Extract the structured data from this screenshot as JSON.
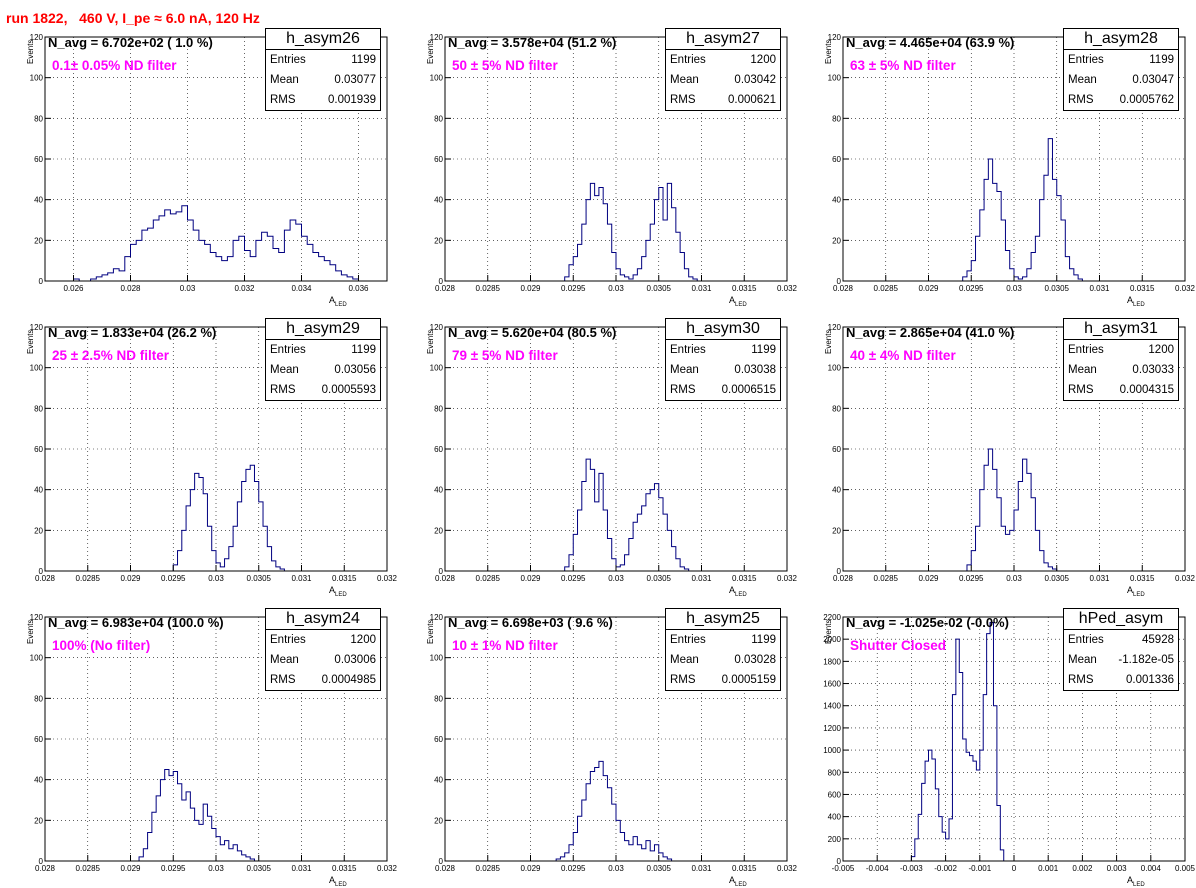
{
  "title": "run 1822,   460 V, I_pe ≈ 6.0 nA, 120 Hz",
  "x_axis_label": "A",
  "x_axis_subscript": "LED",
  "y_axis_label": "Events",
  "stat_labels": {
    "entries": "Entries",
    "mean": "Mean",
    "rms": "RMS"
  },
  "colors": {
    "title": "#ff0000",
    "annotation": "#ff00ff",
    "histogram": "#000080",
    "grid": "#000000"
  },
  "chart_data": [
    {
      "type": "bar",
      "name": "h_asym26",
      "navg_text": "N_avg = 6.702e+02 ( 1.0 %)",
      "filter_text": "0.1± 0.05% ND filter",
      "stats": {
        "entries": "1199",
        "mean": "0.03077",
        "rms": "0.001939"
      },
      "xlim": [
        0.025,
        0.037
      ],
      "xticks": [
        0.026,
        0.028,
        0.03,
        0.032,
        0.034,
        0.036
      ],
      "xtick_labels": [
        "0.026",
        "0.028",
        "0.03",
        "0.032",
        "0.034",
        "0.036"
      ],
      "ylim": [
        0,
        120
      ],
      "yticks": [
        0,
        20,
        40,
        60,
        80,
        100,
        120
      ],
      "ytick_labels": [
        "0",
        "20",
        "40",
        "60",
        "80",
        "100",
        "120"
      ],
      "bins": {
        "start": 0.026,
        "width": 0.0002,
        "counts": [
          1,
          0,
          0,
          1,
          2,
          3,
          4,
          6,
          5,
          12,
          18,
          20,
          25,
          26,
          30,
          32,
          35,
          33,
          34,
          37,
          30,
          25,
          20,
          18,
          14,
          12,
          10,
          12,
          20,
          22,
          15,
          12,
          20,
          24,
          22,
          16,
          14,
          25,
          30,
          28,
          22,
          18,
          14,
          12,
          10,
          8,
          5,
          3,
          2,
          1
        ]
      }
    },
    {
      "type": "bar",
      "name": "h_asym27",
      "navg_text": "N_avg = 3.578e+04 (51.2 %)",
      "filter_text": "50 ± 5% ND filter",
      "stats": {
        "entries": "1200",
        "mean": "0.03042",
        "rms": "0.000621"
      },
      "xlim": [
        0.028,
        0.032
      ],
      "xticks": [
        0.028,
        0.0285,
        0.029,
        0.0295,
        0.03,
        0.0305,
        0.031,
        0.0315,
        0.032
      ],
      "xtick_labels": [
        "0.028",
        "0.0285",
        "0.029",
        "0.0295",
        "0.03",
        "0.0305",
        "0.031",
        "0.0315",
        "0.032"
      ],
      "ylim": [
        0,
        120
      ],
      "yticks": [
        0,
        20,
        40,
        60,
        80,
        100,
        120
      ],
      "ytick_labels": [
        "0",
        "20",
        "40",
        "60",
        "80",
        "100",
        "120"
      ],
      "bins": {
        "start": 0.0294,
        "width": 5e-05,
        "counts": [
          2,
          8,
          12,
          18,
          28,
          40,
          48,
          42,
          46,
          38,
          28,
          14,
          6,
          3,
          2,
          1,
          3,
          6,
          12,
          20,
          28,
          40,
          46,
          30,
          48,
          36,
          24,
          14,
          6,
          2,
          1
        ]
      }
    },
    {
      "type": "bar",
      "name": "h_asym28",
      "navg_text": "N_avg = 4.465e+04 (63.9 %)",
      "filter_text": "63 ± 5% ND filter",
      "stats": {
        "entries": "1199",
        "mean": "0.03047",
        "rms": "0.0005762"
      },
      "xlim": [
        0.028,
        0.032
      ],
      "xticks": [
        0.028,
        0.0285,
        0.029,
        0.0295,
        0.03,
        0.0305,
        0.031,
        0.0315,
        0.032
      ],
      "xtick_labels": [
        "0.028",
        "0.0285",
        "0.029",
        "0.0295",
        "0.03",
        "0.0305",
        "0.031",
        "0.0315",
        "0.032"
      ],
      "ylim": [
        0,
        120
      ],
      "yticks": [
        0,
        20,
        40,
        60,
        80,
        100,
        120
      ],
      "ytick_labels": [
        "0",
        "20",
        "40",
        "60",
        "80",
        "100",
        "120"
      ],
      "bins": {
        "start": 0.0294,
        "width": 5e-05,
        "counts": [
          2,
          5,
          10,
          22,
          35,
          50,
          60,
          48,
          44,
          30,
          15,
          6,
          2,
          1,
          2,
          6,
          14,
          22,
          40,
          52,
          70,
          50,
          42,
          30,
          12,
          6,
          3,
          1
        ]
      }
    },
    {
      "type": "bar",
      "name": "h_asym29",
      "navg_text": "N_avg = 1.833e+04 (26.2 %)",
      "filter_text": "25 ± 2.5% ND filter",
      "stats": {
        "entries": "1199",
        "mean": "0.03056",
        "rms": "0.0005593"
      },
      "xlim": [
        0.028,
        0.032
      ],
      "xticks": [
        0.028,
        0.0285,
        0.029,
        0.0295,
        0.03,
        0.0305,
        0.031,
        0.0315,
        0.032
      ],
      "xtick_labels": [
        "0.028",
        "0.0285",
        "0.029",
        "0.0295",
        "0.03",
        "0.0305",
        "0.031",
        "0.0315",
        "0.032"
      ],
      "ylim": [
        0,
        120
      ],
      "yticks": [
        0,
        20,
        40,
        60,
        80,
        100,
        120
      ],
      "ytick_labels": [
        "0",
        "20",
        "40",
        "60",
        "80",
        "100",
        "120"
      ],
      "bins": {
        "start": 0.0295,
        "width": 5e-05,
        "counts": [
          3,
          10,
          20,
          32,
          40,
          48,
          46,
          38,
          22,
          10,
          4,
          2,
          6,
          12,
          22,
          34,
          44,
          50,
          52,
          44,
          34,
          22,
          12,
          5,
          2,
          1
        ]
      }
    },
    {
      "type": "bar",
      "name": "h_asym30",
      "navg_text": "N_avg = 5.620e+04 (80.5 %)",
      "filter_text": "79 ± 5% ND filter",
      "stats": {
        "entries": "1199",
        "mean": "0.03038",
        "rms": "0.0006515"
      },
      "xlim": [
        0.028,
        0.032
      ],
      "xticks": [
        0.028,
        0.0285,
        0.029,
        0.0295,
        0.03,
        0.0305,
        0.031,
        0.0315,
        0.032
      ],
      "xtick_labels": [
        "0.028",
        "0.0285",
        "0.029",
        "0.0295",
        "0.03",
        "0.0305",
        "0.031",
        "0.0315",
        "0.032"
      ],
      "ylim": [
        0,
        120
      ],
      "yticks": [
        0,
        20,
        40,
        60,
        80,
        100,
        120
      ],
      "ytick_labels": [
        "0",
        "20",
        "40",
        "60",
        "80",
        "100",
        "120"
      ],
      "bins": {
        "start": 0.0294,
        "width": 5e-05,
        "counts": [
          2,
          8,
          18,
          30,
          44,
          55,
          50,
          34,
          48,
          30,
          16,
          6,
          2,
          3,
          8,
          16,
          24,
          28,
          32,
          38,
          40,
          43,
          36,
          28,
          20,
          12,
          6,
          2,
          1
        ]
      }
    },
    {
      "type": "bar",
      "name": "h_asym31",
      "navg_text": "N_avg = 2.865e+04 (41.0 %)",
      "filter_text": "40 ± 4% ND filter",
      "stats": {
        "entries": "1200",
        "mean": "0.03033",
        "rms": "0.0004315"
      },
      "xlim": [
        0.028,
        0.032
      ],
      "xticks": [
        0.028,
        0.0285,
        0.029,
        0.0295,
        0.03,
        0.0305,
        0.031,
        0.0315,
        0.032
      ],
      "xtick_labels": [
        "0.028",
        "0.0285",
        "0.029",
        "0.0295",
        "0.03",
        "0.0305",
        "0.031",
        "0.0315",
        "0.032"
      ],
      "ylim": [
        0,
        120
      ],
      "yticks": [
        0,
        20,
        40,
        60,
        80,
        100,
        120
      ],
      "ytick_labels": [
        "0",
        "20",
        "40",
        "60",
        "80",
        "100",
        "120"
      ],
      "bins": {
        "start": 0.02945,
        "width": 5e-05,
        "counts": [
          3,
          10,
          22,
          40,
          52,
          60,
          50,
          36,
          22,
          18,
          20,
          30,
          44,
          55,
          48,
          36,
          20,
          10,
          4,
          2,
          1
        ]
      }
    },
    {
      "type": "bar",
      "name": "h_asym24",
      "navg_text": "N_avg = 6.983e+04 (100.0 %)",
      "filter_text": "100% (No filter)",
      "stats": {
        "entries": "1200",
        "mean": "0.03006",
        "rms": "0.0004985"
      },
      "xlim": [
        0.028,
        0.032
      ],
      "xticks": [
        0.028,
        0.0285,
        0.029,
        0.0295,
        0.03,
        0.0305,
        0.031,
        0.0315,
        0.032
      ],
      "xtick_labels": [
        "0.028",
        "0.0285",
        "0.029",
        "0.0295",
        "0.03",
        "0.0305",
        "0.031",
        "0.0315",
        "0.032"
      ],
      "ylim": [
        0,
        120
      ],
      "yticks": [
        0,
        20,
        40,
        60,
        80,
        100,
        120
      ],
      "ytick_labels": [
        "0",
        "20",
        "40",
        "60",
        "80",
        "100",
        "120"
      ],
      "bins": {
        "start": 0.0291,
        "width": 5e-05,
        "counts": [
          2,
          6,
          14,
          24,
          32,
          40,
          45,
          42,
          44,
          38,
          30,
          34,
          26,
          20,
          18,
          28,
          22,
          16,
          12,
          8,
          10,
          6,
          8,
          5,
          3,
          2,
          1
        ]
      }
    },
    {
      "type": "bar",
      "name": "h_asym25",
      "navg_text": "N_avg = 6.698e+03 ( 9.6 %)",
      "filter_text": "10 ± 1% ND filter",
      "stats": {
        "entries": "1199",
        "mean": "0.03028",
        "rms": "0.0005159"
      },
      "xlim": [
        0.028,
        0.032
      ],
      "xticks": [
        0.028,
        0.0285,
        0.029,
        0.0295,
        0.03,
        0.0305,
        0.031,
        0.0315,
        0.032
      ],
      "xtick_labels": [
        "0.028",
        "0.0285",
        "0.029",
        "0.0295",
        "0.03",
        "0.0305",
        "0.031",
        "0.0315",
        "0.032"
      ],
      "ylim": [
        0,
        120
      ],
      "yticks": [
        0,
        20,
        40,
        60,
        80,
        100,
        120
      ],
      "ytick_labels": [
        "0",
        "20",
        "40",
        "60",
        "80",
        "100",
        "120"
      ],
      "bins": {
        "start": 0.0293,
        "width": 5e-05,
        "counts": [
          1,
          2,
          4,
          8,
          14,
          22,
          30,
          38,
          44,
          46,
          49,
          42,
          36,
          28,
          20,
          14,
          10,
          8,
          12,
          8,
          6,
          10,
          5,
          8,
          4,
          2,
          1
        ]
      }
    },
    {
      "type": "bar",
      "name": "hPed_asym",
      "navg_text": "N_avg = -1.025e-02 (-0.0%)",
      "filter_text": "Shutter Closed",
      "stats": {
        "entries": "45928",
        "mean": "-1.182e-05",
        "rms": "0.001336"
      },
      "xlim": [
        -0.005,
        0.005
      ],
      "xticks": [
        -0.005,
        -0.004,
        -0.003,
        -0.002,
        -0.001,
        0,
        0.001,
        0.002,
        0.003,
        0.004,
        0.005
      ],
      "xtick_labels": [
        "-0.005",
        "-0.004",
        "-0.003",
        "-0.002",
        "-0.001",
        "0",
        "0.001",
        "0.002",
        "0.003",
        "0.004",
        "0.005"
      ],
      "ylim": [
        0,
        2200
      ],
      "yticks": [
        0,
        200,
        400,
        600,
        800,
        1000,
        1200,
        1400,
        1600,
        1800,
        2000,
        2200
      ],
      "ytick_labels": [
        "0",
        "200",
        "400",
        "600",
        "800",
        "1000",
        "1200",
        "1400",
        "1600",
        "1800",
        "2000",
        "2200"
      ],
      "bins": {
        "start": -0.003,
        "width": 0.0001,
        "counts": [
          40,
          200,
          420,
          700,
          900,
          1000,
          920,
          650,
          400,
          260,
          200,
          380,
          1500,
          2000,
          1700,
          1100,
          980,
          950,
          900,
          820,
          1000,
          1500,
          2050,
          2150,
          1400,
          500,
          100
        ]
      }
    }
  ]
}
